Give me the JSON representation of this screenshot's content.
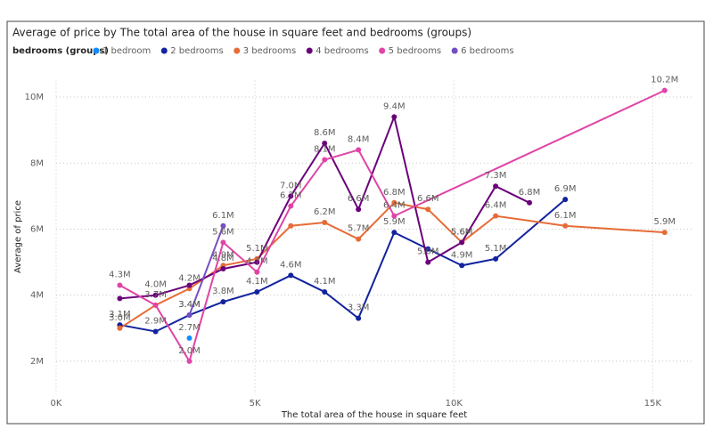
{
  "chart_data": {
    "type": "line",
    "title": "Average of price by The total area of the house in square feet and bedrooms (groups)",
    "legend_title": "bedrooms (groups)",
    "xlabel": "The total area of the house in square feet",
    "ylabel": "Average of price",
    "xlim": [
      0,
      16000
    ],
    "xticks": [
      {
        "value": 0,
        "label": "0K"
      },
      {
        "value": 5000,
        "label": "5K"
      },
      {
        "value": 10000,
        "label": "10K"
      },
      {
        "value": 15000,
        "label": "15K"
      }
    ],
    "ylim": [
      1000000,
      10500000
    ],
    "yticks": [
      {
        "value": 2000000,
        "label": "2M"
      },
      {
        "value": 4000000,
        "label": "4M"
      },
      {
        "value": 6000000,
        "label": "6M"
      },
      {
        "value": 8000000,
        "label": "8M"
      },
      {
        "value": 10000000,
        "label": "10M"
      }
    ],
    "grid": true,
    "series": [
      {
        "name": "1 bedroom",
        "color": "#118DFF",
        "x": [
          3350
        ],
        "values": [
          2700000
        ],
        "value_labels": [
          "2.7M"
        ]
      },
      {
        "name": "2 bedrooms",
        "color": "#12239E",
        "x": [
          1600,
          2500,
          3350,
          4200,
          5050,
          5900,
          6750,
          7600,
          8500,
          9350,
          10200,
          11050,
          12800
        ],
        "values": [
          3100000,
          2900000,
          3400000,
          3800000,
          4100000,
          4600000,
          4100000,
          3300000,
          5900000,
          5400000,
          4900000,
          5100000,
          6900000
        ],
        "value_labels": [
          "3.1M",
          "2.9M",
          "3.4M",
          "3.8M",
          "4.1M",
          "4.6M",
          "4.1M",
          "3.3M",
          "5.9M",
          null,
          "4.9M",
          "5.1M",
          "6.9M"
        ]
      },
      {
        "name": "3 bedrooms",
        "color": "#E66C37",
        "x": [
          1600,
          2500,
          3350,
          4200,
          5050,
          5900,
          6750,
          7600,
          8500,
          9350,
          10200,
          11050,
          12800,
          15300
        ],
        "values": [
          3000000,
          3700000,
          4200000,
          4900000,
          5100000,
          6100000,
          6200000,
          5700000,
          6800000,
          6600000,
          5600000,
          6400000,
          6100000,
          5900000
        ],
        "value_labels": [
          "3.0M",
          null,
          "4.2M",
          "4.9M",
          "5.1M",
          null,
          "6.2M",
          "5.7M",
          "6.8M",
          "6.6M",
          "5.6M",
          "6.4M",
          "6.1M",
          "5.9M"
        ]
      },
      {
        "name": "4 bedrooms",
        "color": "#6B007B",
        "x": [
          1600,
          2500,
          3350,
          4200,
          5050,
          5900,
          6750,
          7600,
          8500,
          9350,
          10200,
          11050,
          11900
        ],
        "values": [
          3900000,
          4000000,
          4300000,
          4800000,
          5000000,
          7000000,
          8600000,
          6600000,
          9400000,
          5000000,
          5600000,
          7300000,
          6800000
        ],
        "value_labels": [
          null,
          "4.0M",
          null,
          "4.8M",
          null,
          "7.0M",
          "8.6M",
          "6.6M",
          "9.4M",
          "5.0M",
          "5.6M",
          "7.3M",
          "6.8M"
        ]
      },
      {
        "name": "5 bedrooms",
        "color": "#E044A7",
        "x": [
          1600,
          2500,
          3350,
          4200,
          5050,
          5900,
          6750,
          7600,
          8500,
          15300
        ],
        "values": [
          4300000,
          3700000,
          2000000,
          5600000,
          4700000,
          6700000,
          8100000,
          8400000,
          6400000,
          10200000
        ],
        "value_labels": [
          "4.3M",
          "3.7M",
          "2.0M",
          "5.6M",
          "4.7M",
          "6.7M",
          "8.1M",
          "8.4M",
          "6.4M",
          "10.2M"
        ]
      },
      {
        "name": "6 bedrooms",
        "color": "#744EC2",
        "x": [
          3350,
          4200
        ],
        "values": [
          3400000,
          6100000
        ],
        "value_labels": [
          "3.4M",
          "6.1M"
        ]
      }
    ]
  }
}
